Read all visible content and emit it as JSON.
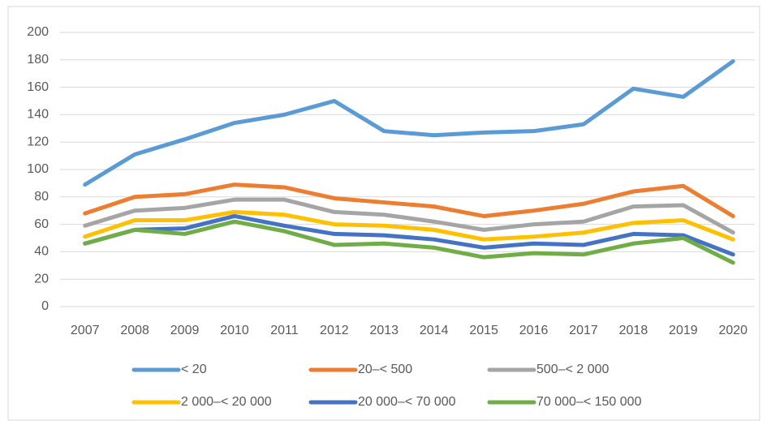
{
  "chart_data": {
    "type": "line",
    "categories": [
      "2007",
      "2008",
      "2009",
      "2010",
      "2011",
      "2012",
      "2013",
      "2014",
      "2015",
      "2016",
      "2017",
      "2018",
      "2019",
      "2020"
    ],
    "series": [
      {
        "name": "< 20",
        "color": "#5b9bd5",
        "values": [
          89,
          111,
          122,
          134,
          140,
          150,
          128,
          125,
          127,
          128,
          133,
          159,
          153,
          179
        ]
      },
      {
        "name": "20–< 500",
        "color": "#ed7d31",
        "values": [
          68,
          80,
          82,
          89,
          87,
          79,
          76,
          73,
          66,
          70,
          75,
          84,
          88,
          66
        ]
      },
      {
        "name": "500–< 2 000",
        "color": "#a5a5a5",
        "values": [
          59,
          70,
          72,
          78,
          78,
          69,
          67,
          62,
          56,
          60,
          62,
          73,
          74,
          54
        ]
      },
      {
        "name": "2 000–< 20 000",
        "color": "#ffc000",
        "values": [
          51,
          63,
          63,
          69,
          67,
          60,
          59,
          56,
          49,
          51,
          54,
          61,
          63,
          49
        ]
      },
      {
        "name": "20 000–< 70 000",
        "color": "#4472c4",
        "values": [
          46,
          56,
          57,
          66,
          59,
          53,
          52,
          49,
          43,
          46,
          45,
          53,
          52,
          38
        ]
      },
      {
        "name": "70 000–< 150 000",
        "color": "#70ad47",
        "values": [
          46,
          56,
          53,
          62,
          55,
          45,
          46,
          43,
          36,
          39,
          38,
          46,
          50,
          32
        ]
      }
    ],
    "ylim": [
      0,
      200
    ],
    "yticks": [
      0,
      20,
      40,
      60,
      80,
      100,
      120,
      140,
      160,
      180,
      200
    ],
    "grid": true
  }
}
